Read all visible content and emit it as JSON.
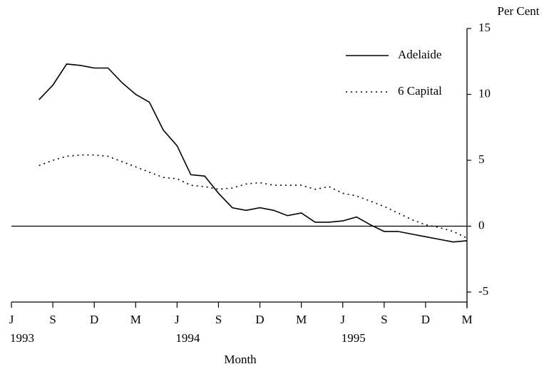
{
  "chart_data": {
    "type": "line",
    "x_label": "Month",
    "y_label": "Per Cent",
    "categories": [
      "J",
      null,
      null,
      "S",
      null,
      null,
      "D",
      null,
      null,
      "M",
      null,
      null,
      "J",
      null,
      null,
      "S",
      null,
      null,
      "D",
      null,
      null,
      "M",
      null,
      null,
      "J",
      null,
      null,
      "S",
      null,
      null,
      "D",
      null,
      null,
      "M"
    ],
    "year_labels": [
      "1993",
      null,
      null,
      null,
      null,
      null,
      null,
      null,
      null,
      null,
      null,
      null,
      "1994",
      null,
      null,
      null,
      null,
      null,
      null,
      null,
      null,
      null,
      null,
      null,
      "1995",
      null,
      null,
      null,
      null,
      null,
      null,
      null,
      null,
      null
    ],
    "series": [
      {
        "name": "Adelaide",
        "color": "#000000",
        "dash": "solid",
        "values": [
          null,
          null,
          9.6,
          10.7,
          12.3,
          12.2,
          12.0,
          12.0,
          10.9,
          10.0,
          9.4,
          7.3,
          6.1,
          3.9,
          3.8,
          2.5,
          1.4,
          1.2,
          1.4,
          1.2,
          0.8,
          1.0,
          0.3,
          0.3,
          0.4,
          0.7,
          0.1,
          -0.4,
          -0.4,
          -0.6,
          -0.8,
          -1.0,
          -1.2,
          -1.1
        ]
      },
      {
        "name": "6 Capital",
        "color": "#000000",
        "dash": "dotted",
        "values": [
          null,
          null,
          4.6,
          5.0,
          5.3,
          5.4,
          5.4,
          5.3,
          4.9,
          4.5,
          4.1,
          3.7,
          3.6,
          3.1,
          3.0,
          2.8,
          2.9,
          3.2,
          3.3,
          3.1,
          3.1,
          3.1,
          2.8,
          3.0,
          2.5,
          2.3,
          1.9,
          1.5,
          1.0,
          0.5,
          0.1,
          -0.1,
          -0.4,
          -0.9
        ]
      }
    ],
    "ylim": [
      -5.8,
      15
    ],
    "yticks": [
      15,
      10,
      5,
      0,
      -5
    ],
    "y_axis_side": "right",
    "zero_line": true,
    "legend": "top-right"
  }
}
